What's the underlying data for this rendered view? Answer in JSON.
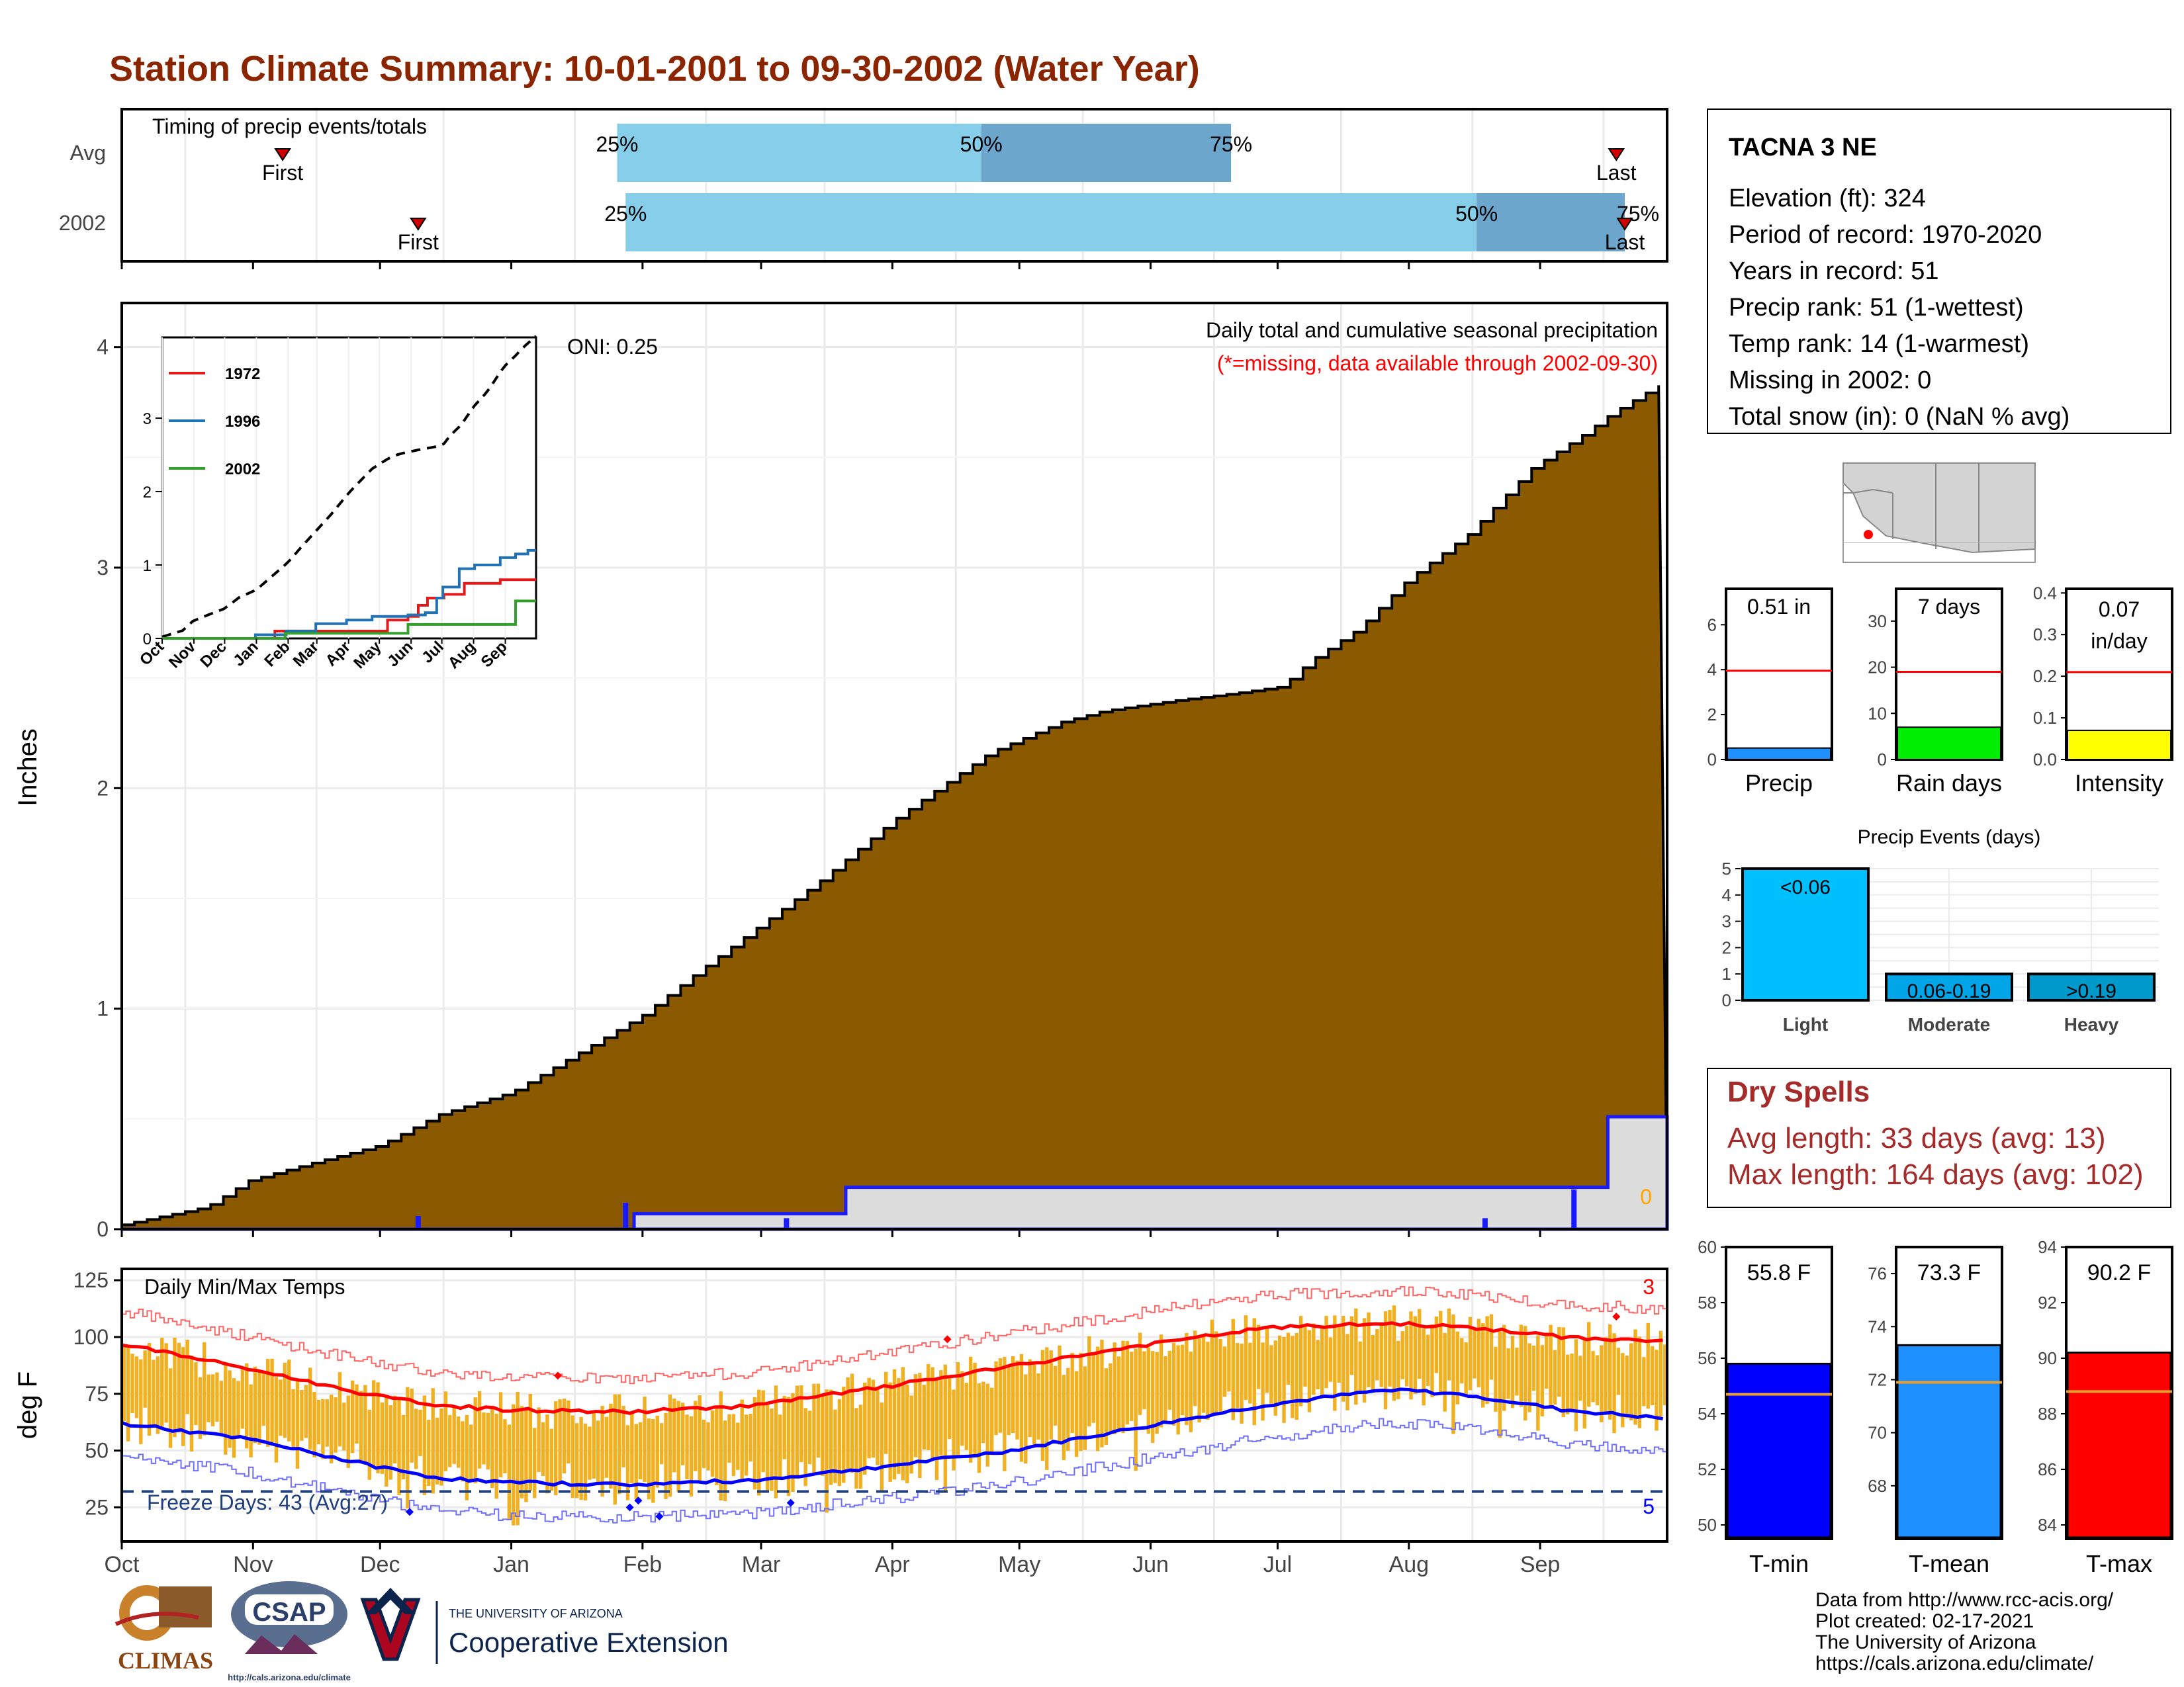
{
  "page": {
    "title": "Station Climate Summary: 10-01-2001 to 09-30-2002 (Water Year)",
    "title_color": "#8b2500"
  },
  "months": [
    "Oct",
    "Nov",
    "Dec",
    "Jan",
    "Feb",
    "Mar",
    "Apr",
    "May",
    "Jun",
    "Jul",
    "Aug",
    "Sep"
  ],
  "timing": {
    "title": "Timing of precip events/totals",
    "rows": [
      {
        "label": "Avg",
        "first_label": "First",
        "last_label": "Last",
        "first_day": 38,
        "last_day": 353,
        "p25_label": "25%",
        "p50_label": "50%",
        "p75_label": "75%",
        "p25_day": 117,
        "p50_day": 203,
        "p75_day": 262
      },
      {
        "label": "2002",
        "first_label": "First",
        "last_label": "Last",
        "first_day": 70,
        "last_day": 355,
        "p25_label": "25%",
        "p50_label": "50%",
        "p75_label": "75%",
        "p25_day": 119,
        "p50_day": 320,
        "p75_day": 355
      }
    ],
    "colors": {
      "light": "#87ceeb",
      "dark": "#6ca6cd",
      "marker": "#cc0000"
    }
  },
  "precip": {
    "ylabel": "Inches",
    "annotation": "Daily total and cumulative seasonal precipitation",
    "missing_note": "(*=missing, data available through 2002-09-30)",
    "missing_count": "0",
    "oni": "ONI: 0.25",
    "fill_color": "#8b5a00",
    "chart_data": {
      "type": "area",
      "ylim": [
        0,
        4.2
      ],
      "yticks": [
        0,
        1,
        2,
        3,
        4
      ],
      "avg_cumulative": {
        "days": [
          0,
          10,
          20,
          30,
          45,
          61,
          75,
          92,
          108,
          123,
          135,
          151,
          165,
          182,
          193,
          205,
          222,
          232,
          250,
          263,
          274,
          281,
          292,
          304,
          318,
          333,
          345,
          352,
          365
        ],
        "values": [
          0.02,
          0.06,
          0.1,
          0.22,
          0.3,
          0.38,
          0.52,
          0.62,
          0.8,
          0.97,
          1.15,
          1.38,
          1.58,
          1.85,
          2.0,
          2.16,
          2.3,
          2.35,
          2.4,
          2.43,
          2.46,
          2.58,
          2.72,
          2.95,
          3.15,
          3.45,
          3.6,
          3.7,
          3.85
        ]
      },
      "year_cumulative": {
        "days": [
          0,
          120,
          121,
          170,
          171,
          350,
          351,
          365
        ],
        "values": [
          0,
          0,
          0.07,
          0.07,
          0.19,
          0.19,
          0.51,
          0.51
        ]
      },
      "daily_bars": [
        {
          "day": 70,
          "value": 0.06
        },
        {
          "day": 119,
          "value": 0.12
        },
        {
          "day": 157,
          "value": 0.05
        },
        {
          "day": 322,
          "value": 0.05
        },
        {
          "day": 343,
          "value": 0.18
        }
      ]
    }
  },
  "inset": {
    "series": [
      {
        "name": "1972",
        "color": "#e31a1c",
        "days": [
          0,
          18,
          45,
          66,
          85,
          110,
          164,
          197,
          220,
          228,
          240,
          250,
          259,
          275,
          295,
          330,
          365
        ],
        "values": [
          0,
          0,
          0,
          0,
          0,
          0.1,
          0.1,
          0.1,
          0.25,
          0.25,
          0.3,
          0.45,
          0.55,
          0.6,
          0.75,
          0.8,
          0.8
        ]
      },
      {
        "name": "1996",
        "color": "#2171b5",
        "days": [
          0,
          30,
          60,
          91,
          121,
          150,
          180,
          205,
          221,
          240,
          257,
          268,
          274,
          290,
          305,
          330,
          345,
          357,
          365
        ],
        "values": [
          0,
          0,
          0,
          0.05,
          0.1,
          0.2,
          0.25,
          0.3,
          0.3,
          0.32,
          0.35,
          0.55,
          0.7,
          0.95,
          1.0,
          1.1,
          1.15,
          1.2,
          1.2
        ]
      },
      {
        "name": "2002",
        "color": "#33a02c",
        "days": [
          0,
          120,
          170,
          240,
          280,
          300,
          330,
          345,
          365
        ],
        "values": [
          0,
          0.07,
          0.07,
          0.19,
          0.19,
          0.19,
          0.19,
          0.51,
          0.51
        ]
      }
    ],
    "ylim": [
      0,
      4.1
    ],
    "yticks": [
      0,
      1,
      2,
      3
    ]
  },
  "temps": {
    "title": "Daily Min/Max Temps",
    "ylabel": "deg F",
    "freeze_label": "Freeze Days: 43 (Avg:27)",
    "max_record_count": "3",
    "min_record_count": "5",
    "chart_data": {
      "type": "line",
      "ylim": [
        10,
        130
      ],
      "yticks": [
        25,
        50,
        75,
        100,
        125
      ],
      "freeze_line": 32,
      "avg_max": {
        "days": [
          0,
          30,
          60,
          75,
          90,
          120,
          150,
          180,
          210,
          240,
          270,
          300,
          320,
          340,
          365
        ],
        "values": [
          97,
          86,
          74,
          70,
          68,
          67,
          70,
          78,
          87,
          96,
          104,
          106,
          104,
          100,
          98
        ]
      },
      "avg_min": {
        "days": [
          0,
          30,
          60,
          75,
          90,
          120,
          150,
          180,
          210,
          240,
          270,
          300,
          320,
          340,
          365
        ],
        "values": [
          62,
          55,
          43,
          38,
          36,
          35,
          37,
          43,
          50,
          60,
          70,
          77,
          74,
          68,
          64
        ]
      }
    }
  },
  "station": {
    "name": "TACNA 3 NE",
    "elevation": "Elevation (ft): 324",
    "period": "Period of record: 1970-2020",
    "years": "Years in record: 51",
    "precip_rank": "Precip rank: 51 (1-wettest)",
    "temp_rank": "Temp rank: 14 (1-warmest)",
    "missing": "Missing in 2002: 0",
    "snow": "Total snow (in): 0 (NaN % avg)"
  },
  "mini_bars": [
    {
      "label": "Precip",
      "value_label": "0.51 in",
      "value": 0.51,
      "avg": 3.95,
      "ymax": 7.6,
      "ticks": [
        0,
        2,
        4,
        6
      ],
      "color": "#1e90ff"
    },
    {
      "label": "Rain days",
      "value_label": "7 days",
      "value": 7,
      "avg": 19,
      "ymax": 37,
      "ticks": [
        0,
        10,
        20,
        30
      ],
      "color": "#00ee00"
    },
    {
      "label": "Intensity",
      "value_label1": "0.07",
      "value_label2": "in/day",
      "value": 0.07,
      "avg": 0.21,
      "ymax": 0.41,
      "ticks": [
        0.0,
        0.1,
        0.2,
        0.3,
        0.4
      ],
      "color": "#ffff00"
    }
  ],
  "events": {
    "title": "Precip Events (days)",
    "chart_data": {
      "type": "bar",
      "categories": [
        "Light",
        "Moderate",
        "Heavy"
      ],
      "values": [
        5,
        1,
        1
      ],
      "bar_labels": [
        "<0.06",
        "0.06-0.19",
        ">0.19"
      ],
      "colors": [
        "#00bfff",
        "#00a5e8",
        "#0099cc"
      ],
      "ylim": [
        0,
        5
      ],
      "yticks": [
        0,
        1,
        2,
        3,
        4,
        5
      ]
    }
  },
  "dry_spells": {
    "title": "Dry Spells",
    "avg": "Avg length: 33 days (avg: 13)",
    "max": "Max length: 164 days (avg: 102)",
    "color": "#a52a2a"
  },
  "temp_bars": [
    {
      "label": "T-min",
      "value_label": "55.8 F",
      "value": 55.8,
      "avg": 54.7,
      "ymin": 49.5,
      "ymax": 60,
      "ticks": [
        50,
        52,
        54,
        56,
        58,
        60
      ],
      "color": "#0000ff"
    },
    {
      "label": "T-mean",
      "value_label": "73.3 F",
      "value": 73.3,
      "avg": 71.9,
      "ymin": 66,
      "ymax": 77,
      "ticks": [
        68,
        70,
        72,
        74,
        76
      ],
      "color": "#1e90ff"
    },
    {
      "label": "T-max",
      "value_label": "90.2 F",
      "value": 90.2,
      "avg": 88.8,
      "ymin": 83.5,
      "ymax": 94,
      "ticks": [
        84,
        86,
        88,
        90,
        92,
        94
      ],
      "color": "#ff0000"
    }
  ],
  "credits": {
    "line1": "Data from http://www.rcc-acis.org/",
    "line2": "Plot created: 02-17-2021",
    "line3": "The University of Arizona",
    "line4": "https://cals.arizona.edu/climate/"
  },
  "logos": {
    "climas": "CLIMAS",
    "csap": "CSAP",
    "csap_url": "http://cals.arizona.edu/climate",
    "ua_small": "THE UNIVERSITY OF ARIZONA",
    "ua_big": "Cooperative Extension"
  }
}
